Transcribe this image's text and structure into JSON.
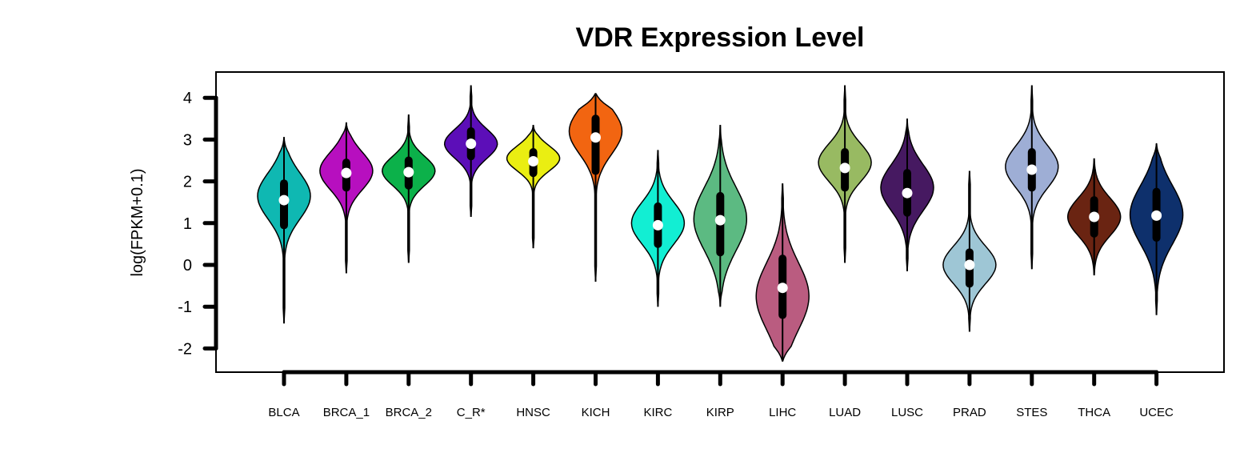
{
  "chart_data": {
    "type": "violin",
    "title": "VDR Expression Level",
    "xlabel": "",
    "ylabel": "log(FPKM+0.1)",
    "ylim": [
      -2.55,
      4.35
    ],
    "yticks": [
      "-2",
      "-1",
      "0",
      "1",
      "2",
      "3",
      "4"
    ],
    "ytick_values": [
      -2,
      -1,
      0,
      1,
      2,
      3,
      4
    ],
    "grid": false,
    "categories": [
      "BLCA",
      "BRCA_1",
      "BRCA_2",
      "C_R*",
      "HNSC",
      "KICH",
      "KIRC",
      "KIRP",
      "LIHC",
      "LUAD",
      "LUSC",
      "PRAD",
      "STES",
      "THCA",
      "UCEC"
    ],
    "series": [
      {
        "name": "BLCA",
        "color": "#0fb8b2",
        "min": -1.4,
        "max": 3.05,
        "q1": 0.95,
        "median": 1.55,
        "q3": 1.95,
        "wlo": -1.4,
        "whi": 3.05,
        "mode": 1.65,
        "spread": 0.55
      },
      {
        "name": "BRCA_1",
        "color": "#b70fbf",
        "min": -0.2,
        "max": 3.4,
        "q1": 1.85,
        "median": 2.2,
        "q3": 2.45,
        "wlo": -0.2,
        "whi": 3.4,
        "mode": 2.25,
        "spread": 0.45
      },
      {
        "name": "BRCA_2",
        "color": "#0cb14a",
        "min": 0.05,
        "max": 3.6,
        "q1": 1.9,
        "median": 2.22,
        "q3": 2.5,
        "wlo": 0.05,
        "whi": 3.6,
        "mode": 2.25,
        "spread": 0.35
      },
      {
        "name": "C_R*",
        "color": "#5c0eb8",
        "min": 1.15,
        "max": 4.3,
        "q1": 2.6,
        "median": 2.9,
        "q3": 3.2,
        "wlo": 1.15,
        "whi": 4.3,
        "mode": 2.9,
        "spread": 0.35
      },
      {
        "name": "HNSC",
        "color": "#eaee12",
        "min": 0.4,
        "max": 3.35,
        "q1": 2.2,
        "median": 2.48,
        "q3": 2.7,
        "wlo": 0.4,
        "whi": 3.35,
        "mode": 2.55,
        "spread": 0.3
      },
      {
        "name": "KICH",
        "color": "#f26511",
        "min": -0.4,
        "max": 4.1,
        "q1": 2.25,
        "median": 3.05,
        "q3": 3.5,
        "wlo": -0.4,
        "whi": 4.1,
        "mode": 3.2,
        "spread": 0.55
      },
      {
        "name": "KIRC",
        "color": "#12eed3",
        "min": -1.0,
        "max": 2.75,
        "q1": 0.5,
        "median": 0.95,
        "q3": 1.4,
        "wlo": -1.0,
        "whi": 2.75,
        "mode": 1.0,
        "spread": 0.5
      },
      {
        "name": "KIRP",
        "color": "#5cba82",
        "min": -1.0,
        "max": 3.35,
        "q1": 0.3,
        "median": 1.07,
        "q3": 1.65,
        "wlo": -1.0,
        "whi": 3.35,
        "mode": 1.1,
        "spread": 0.75
      },
      {
        "name": "LIHC",
        "color": "#ba5c80",
        "min": -2.3,
        "max": 1.95,
        "q1": -1.2,
        "median": -0.55,
        "q3": 0.15,
        "wlo": -2.3,
        "whi": 1.95,
        "mode": -0.75,
        "spread": 0.8
      },
      {
        "name": "LUAD",
        "color": "#98ba62",
        "min": 0.05,
        "max": 4.3,
        "q1": 1.85,
        "median": 2.32,
        "q3": 2.7,
        "wlo": 0.05,
        "whi": 4.3,
        "mode": 2.45,
        "spread": 0.45
      },
      {
        "name": "LUSC",
        "color": "#461961",
        "min": -0.15,
        "max": 3.5,
        "q1": 1.25,
        "median": 1.72,
        "q3": 2.2,
        "wlo": -0.15,
        "whi": 3.5,
        "mode": 1.85,
        "spread": 0.55
      },
      {
        "name": "PRAD",
        "color": "#9ec6d5",
        "min": -1.6,
        "max": 2.25,
        "q1": -0.45,
        "median": 0.0,
        "q3": 0.3,
        "wlo": -1.6,
        "whi": 2.25,
        "mode": 0.0,
        "spread": 0.45
      },
      {
        "name": "STES",
        "color": "#9eaed5",
        "min": -0.1,
        "max": 4.3,
        "q1": 1.85,
        "median": 2.28,
        "q3": 2.7,
        "wlo": -0.1,
        "whi": 4.3,
        "mode": 2.35,
        "spread": 0.5
      },
      {
        "name": "THCA",
        "color": "#6a2412",
        "min": -0.25,
        "max": 2.55,
        "q1": 0.75,
        "median": 1.15,
        "q3": 1.55,
        "wlo": -0.25,
        "whi": 2.55,
        "mode": 1.15,
        "spread": 0.45
      },
      {
        "name": "UCEC",
        "color": "#0e306c",
        "min": -1.2,
        "max": 2.9,
        "q1": 0.65,
        "median": 1.18,
        "q3": 1.75,
        "wlo": -1.2,
        "whi": 2.9,
        "mode": 1.2,
        "spread": 0.7
      }
    ]
  }
}
